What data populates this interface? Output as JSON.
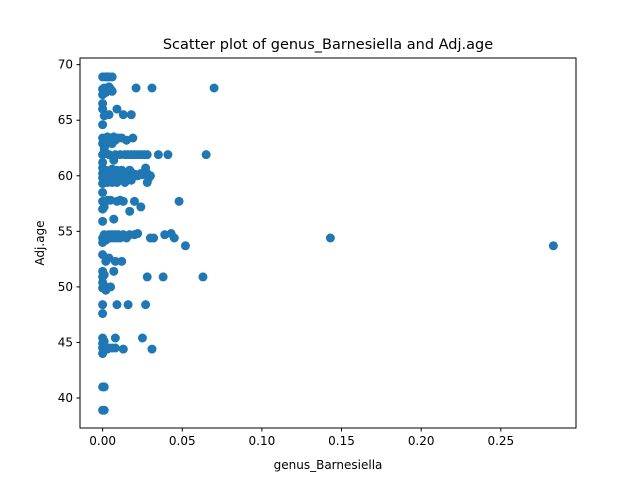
{
  "chart_data": {
    "type": "scatter",
    "title": "Scatter plot of genus_Barnesiella and Adj.age",
    "xlabel": "genus_Barnesiella",
    "ylabel": "Adj.age",
    "xlim": [
      -0.0142,
      0.2972
    ],
    "ylim": [
      37.3,
      70.6
    ],
    "xticks": [
      0.0,
      0.05,
      0.1,
      0.15,
      0.2,
      0.25
    ],
    "xtick_labels": [
      "0.00",
      "0.05",
      "0.10",
      "0.15",
      "0.20",
      "0.25"
    ],
    "yticks": [
      40,
      45,
      50,
      55,
      60,
      65,
      70
    ],
    "ytick_labels": [
      "40",
      "45",
      "50",
      "55",
      "60",
      "65",
      "70"
    ],
    "grid": false,
    "marker_color": "#1f77b4",
    "points": [
      [
        0.0,
        38.9
      ],
      [
        0.0,
        41.0
      ],
      [
        0.0,
        44.0
      ],
      [
        0.0,
        44.5
      ],
      [
        0.0,
        44.9
      ],
      [
        0.0,
        45.4
      ],
      [
        0.0,
        47.6
      ],
      [
        0.0,
        48.4
      ],
      [
        0.0,
        49.9
      ],
      [
        0.0,
        50.4
      ],
      [
        0.0,
        50.9
      ],
      [
        0.0,
        51.4
      ],
      [
        0.0,
        52.9
      ],
      [
        0.0,
        54.0
      ],
      [
        0.0,
        54.4
      ],
      [
        0.0,
        55.9
      ],
      [
        0.0,
        57.0
      ],
      [
        0.0,
        57.7
      ],
      [
        0.0,
        58.5
      ],
      [
        0.0,
        59.3
      ],
      [
        0.0,
        59.8
      ],
      [
        0.0,
        60.2
      ],
      [
        0.0,
        60.7
      ],
      [
        0.0,
        61.2
      ],
      [
        0.0,
        61.9
      ],
      [
        0.0,
        62.9
      ],
      [
        0.0,
        63.4
      ],
      [
        0.0,
        64.6
      ],
      [
        0.0,
        66.0
      ],
      [
        0.0,
        66.5
      ],
      [
        0.0,
        67.3
      ],
      [
        0.0,
        67.8
      ],
      [
        0.0,
        68.9
      ],
      [
        0.001,
        38.9
      ],
      [
        0.001,
        41.0
      ],
      [
        0.001,
        44.3
      ],
      [
        0.001,
        45.1
      ],
      [
        0.001,
        50.1
      ],
      [
        0.001,
        51.1
      ],
      [
        0.001,
        54.7
      ],
      [
        0.001,
        57.2
      ],
      [
        0.001,
        59.6
      ],
      [
        0.001,
        62.4
      ],
      [
        0.001,
        65.4
      ],
      [
        0.001,
        67.9
      ],
      [
        0.002,
        44.4
      ],
      [
        0.002,
        49.7
      ],
      [
        0.002,
        52.3
      ],
      [
        0.002,
        54.2
      ],
      [
        0.002,
        57.7
      ],
      [
        0.002,
        59.9
      ],
      [
        0.002,
        60.5
      ],
      [
        0.002,
        62.0
      ],
      [
        0.002,
        63.1
      ],
      [
        0.002,
        67.5
      ],
      [
        0.002,
        68.9
      ],
      [
        0.003,
        44.4
      ],
      [
        0.003,
        54.4
      ],
      [
        0.003,
        57.8
      ],
      [
        0.003,
        59.4
      ],
      [
        0.003,
        60.0
      ],
      [
        0.003,
        62.9
      ],
      [
        0.003,
        63.5
      ],
      [
        0.003,
        67.8
      ],
      [
        0.003,
        68.9
      ],
      [
        0.004,
        44.5
      ],
      [
        0.004,
        52.6
      ],
      [
        0.004,
        54.7
      ],
      [
        0.004,
        59.6
      ],
      [
        0.004,
        60.3
      ],
      [
        0.004,
        61.9
      ],
      [
        0.004,
        65.5
      ],
      [
        0.004,
        68.0
      ],
      [
        0.004,
        68.9
      ],
      [
        0.005,
        50.0
      ],
      [
        0.005,
        54.4
      ],
      [
        0.005,
        57.8
      ],
      [
        0.005,
        59.9
      ],
      [
        0.005,
        60.5
      ],
      [
        0.005,
        63.4
      ],
      [
        0.005,
        67.8
      ],
      [
        0.006,
        44.5
      ],
      [
        0.006,
        54.7
      ],
      [
        0.006,
        59.4
      ],
      [
        0.006,
        60.6
      ],
      [
        0.006,
        62.9
      ],
      [
        0.006,
        67.6
      ],
      [
        0.006,
        68.9
      ],
      [
        0.007,
        51.4
      ],
      [
        0.007,
        54.4
      ],
      [
        0.007,
        56.1
      ],
      [
        0.007,
        59.6
      ],
      [
        0.007,
        60.1
      ],
      [
        0.007,
        61.4
      ],
      [
        0.007,
        63.5
      ],
      [
        0.008,
        44.5
      ],
      [
        0.008,
        45.4
      ],
      [
        0.008,
        52.3
      ],
      [
        0.008,
        54.7
      ],
      [
        0.008,
        59.9
      ],
      [
        0.008,
        61.9
      ],
      [
        0.008,
        63.2
      ],
      [
        0.009,
        48.4
      ],
      [
        0.009,
        54.4
      ],
      [
        0.009,
        57.7
      ],
      [
        0.009,
        59.4
      ],
      [
        0.009,
        60.5
      ],
      [
        0.009,
        66.0
      ],
      [
        0.01,
        54.7
      ],
      [
        0.01,
        59.9
      ],
      [
        0.01,
        60.2
      ],
      [
        0.01,
        63.4
      ],
      [
        0.011,
        54.4
      ],
      [
        0.011,
        57.8
      ],
      [
        0.011,
        59.6
      ],
      [
        0.011,
        61.9
      ],
      [
        0.012,
        52.3
      ],
      [
        0.012,
        60.5
      ],
      [
        0.012,
        63.4
      ],
      [
        0.013,
        44.4
      ],
      [
        0.013,
        54.7
      ],
      [
        0.013,
        57.7
      ],
      [
        0.013,
        60.0
      ],
      [
        0.013,
        65.5
      ],
      [
        0.014,
        59.4
      ],
      [
        0.014,
        61.9
      ],
      [
        0.015,
        54.4
      ],
      [
        0.015,
        60.3
      ],
      [
        0.015,
        63.2
      ],
      [
        0.016,
        48.4
      ],
      [
        0.016,
        59.9
      ],
      [
        0.016,
        61.9
      ],
      [
        0.017,
        54.7
      ],
      [
        0.017,
        56.8
      ],
      [
        0.017,
        60.5
      ],
      [
        0.018,
        59.6
      ],
      [
        0.018,
        61.9
      ],
      [
        0.018,
        65.5
      ],
      [
        0.019,
        60.2
      ],
      [
        0.019,
        63.4
      ],
      [
        0.02,
        54.7
      ],
      [
        0.02,
        57.7
      ],
      [
        0.02,
        61.9
      ],
      [
        0.021,
        60.1
      ],
      [
        0.021,
        67.9
      ],
      [
        0.022,
        54.8
      ],
      [
        0.022,
        60.0
      ],
      [
        0.022,
        61.9
      ],
      [
        0.024,
        57.2
      ],
      [
        0.024,
        60.2
      ],
      [
        0.024,
        61.9
      ],
      [
        0.025,
        45.4
      ],
      [
        0.025,
        60.1
      ],
      [
        0.026,
        61.9
      ],
      [
        0.027,
        48.4
      ],
      [
        0.027,
        60.7
      ],
      [
        0.028,
        50.9
      ],
      [
        0.028,
        59.4
      ],
      [
        0.028,
        60.2
      ],
      [
        0.028,
        61.9
      ],
      [
        0.029,
        59.8
      ],
      [
        0.03,
        54.4
      ],
      [
        0.03,
        60.0
      ],
      [
        0.031,
        44.4
      ],
      [
        0.031,
        67.9
      ],
      [
        0.032,
        54.4
      ],
      [
        0.035,
        61.9
      ],
      [
        0.038,
        50.9
      ],
      [
        0.039,
        54.7
      ],
      [
        0.041,
        61.9
      ],
      [
        0.043,
        54.8
      ],
      [
        0.045,
        54.4
      ],
      [
        0.048,
        57.7
      ],
      [
        0.052,
        53.7
      ],
      [
        0.063,
        50.9
      ],
      [
        0.065,
        61.9
      ],
      [
        0.07,
        67.9
      ],
      [
        0.143,
        54.4
      ],
      [
        0.283,
        53.7
      ]
    ]
  }
}
